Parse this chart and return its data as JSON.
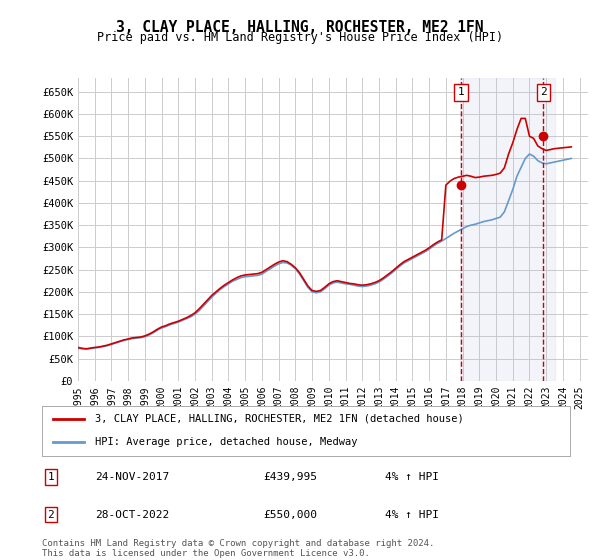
{
  "title": "3, CLAY PLACE, HALLING, ROCHESTER, ME2 1FN",
  "subtitle": "Price paid vs. HM Land Registry's House Price Index (HPI)",
  "background_color": "#ffffff",
  "plot_bg_color": "#ffffff",
  "grid_color": "#cccccc",
  "hpi_line_color": "#6699cc",
  "price_line_color": "#cc0000",
  "annotation_bg": "#dce6f5",
  "ylim": [
    0,
    680000
  ],
  "yticks": [
    0,
    50000,
    100000,
    150000,
    200000,
    250000,
    300000,
    350000,
    400000,
    450000,
    500000,
    550000,
    600000,
    650000
  ],
  "ytick_labels": [
    "£0",
    "£50K",
    "£100K",
    "£150K",
    "£200K",
    "£250K",
    "£300K",
    "£350K",
    "£400K",
    "£450K",
    "£500K",
    "£550K",
    "£600K",
    "£650K"
  ],
  "xlim_start": 1995.0,
  "xlim_end": 2025.5,
  "xtick_years": [
    1995,
    1996,
    1997,
    1998,
    1999,
    2000,
    2001,
    2002,
    2003,
    2004,
    2005,
    2006,
    2007,
    2008,
    2009,
    2010,
    2011,
    2012,
    2013,
    2014,
    2015,
    2016,
    2017,
    2018,
    2019,
    2020,
    2021,
    2022,
    2023,
    2024,
    2025
  ],
  "purchase1_x": 2017.9,
  "purchase1_y": 439995,
  "purchase1_label": "1",
  "purchase2_x": 2022.83,
  "purchase2_y": 550000,
  "purchase2_label": "2",
  "legend_label_red": "3, CLAY PLACE, HALLING, ROCHESTER, ME2 1FN (detached house)",
  "legend_label_blue": "HPI: Average price, detached house, Medway",
  "annotation1_date": "24-NOV-2017",
  "annotation1_price": "£439,995",
  "annotation1_hpi": "4% ↑ HPI",
  "annotation2_date": "28-OCT-2022",
  "annotation2_price": "£550,000",
  "annotation2_hpi": "4% ↑ HPI",
  "footer": "Contains HM Land Registry data © Crown copyright and database right 2024.\nThis data is licensed under the Open Government Licence v3.0.",
  "hpi_data_x": [
    1995.0,
    1995.25,
    1995.5,
    1995.75,
    1996.0,
    1996.25,
    1996.5,
    1996.75,
    1997.0,
    1997.25,
    1997.5,
    1997.75,
    1998.0,
    1998.25,
    1998.5,
    1998.75,
    1999.0,
    1999.25,
    1999.5,
    1999.75,
    2000.0,
    2000.25,
    2000.5,
    2000.75,
    2001.0,
    2001.25,
    2001.5,
    2001.75,
    2002.0,
    2002.25,
    2002.5,
    2002.75,
    2003.0,
    2003.25,
    2003.5,
    2003.75,
    2004.0,
    2004.25,
    2004.5,
    2004.75,
    2005.0,
    2005.25,
    2005.5,
    2005.75,
    2006.0,
    2006.25,
    2006.5,
    2006.75,
    2007.0,
    2007.25,
    2007.5,
    2007.75,
    2008.0,
    2008.25,
    2008.5,
    2008.75,
    2009.0,
    2009.25,
    2009.5,
    2009.75,
    2010.0,
    2010.25,
    2010.5,
    2010.75,
    2011.0,
    2011.25,
    2011.5,
    2011.75,
    2012.0,
    2012.25,
    2012.5,
    2012.75,
    2013.0,
    2013.25,
    2013.5,
    2013.75,
    2014.0,
    2014.25,
    2014.5,
    2014.75,
    2015.0,
    2015.25,
    2015.5,
    2015.75,
    2016.0,
    2016.25,
    2016.5,
    2016.75,
    2017.0,
    2017.25,
    2017.5,
    2017.75,
    2018.0,
    2018.25,
    2018.5,
    2018.75,
    2019.0,
    2019.25,
    2019.5,
    2019.75,
    2020.0,
    2020.25,
    2020.5,
    2020.75,
    2021.0,
    2021.25,
    2021.5,
    2021.75,
    2022.0,
    2022.25,
    2022.5,
    2022.75,
    2023.0,
    2023.25,
    2023.5,
    2023.75,
    2024.0,
    2024.25,
    2024.5
  ],
  "hpi_data_y": [
    73000,
    72000,
    71500,
    72500,
    74000,
    75000,
    77000,
    79000,
    82000,
    85000,
    88000,
    91000,
    93000,
    95000,
    96000,
    97000,
    99000,
    103000,
    108000,
    114000,
    119000,
    122000,
    126000,
    129000,
    132000,
    136000,
    140000,
    144000,
    150000,
    158000,
    168000,
    178000,
    188000,
    197000,
    205000,
    212000,
    218000,
    224000,
    228000,
    232000,
    234000,
    235000,
    236000,
    237000,
    240000,
    246000,
    252000,
    258000,
    263000,
    266000,
    265000,
    260000,
    252000,
    240000,
    225000,
    210000,
    200000,
    198000,
    200000,
    207000,
    215000,
    220000,
    222000,
    220000,
    218000,
    217000,
    215000,
    213000,
    212000,
    213000,
    215000,
    218000,
    222000,
    228000,
    235000,
    242000,
    250000,
    258000,
    265000,
    270000,
    275000,
    280000,
    285000,
    290000,
    296000,
    303000,
    309000,
    314000,
    320000,
    326000,
    332000,
    337000,
    342000,
    347000,
    350000,
    352000,
    355000,
    358000,
    360000,
    362000,
    365000,
    368000,
    380000,
    405000,
    430000,
    460000,
    480000,
    500000,
    510000,
    505000,
    495000,
    490000,
    488000,
    490000,
    492000,
    494000,
    496000,
    498000,
    500000
  ],
  "price_data_x": [
    1995.0,
    1995.25,
    1995.5,
    1995.75,
    1996.0,
    1996.25,
    1996.5,
    1996.75,
    1997.0,
    1997.25,
    1997.5,
    1997.75,
    1998.0,
    1998.25,
    1998.5,
    1998.75,
    1999.0,
    1999.25,
    1999.5,
    1999.75,
    2000.0,
    2000.25,
    2000.5,
    2000.75,
    2001.0,
    2001.25,
    2001.5,
    2001.75,
    2002.0,
    2002.25,
    2002.5,
    2002.75,
    2003.0,
    2003.25,
    2003.5,
    2003.75,
    2004.0,
    2004.25,
    2004.5,
    2004.75,
    2005.0,
    2005.25,
    2005.5,
    2005.75,
    2006.0,
    2006.25,
    2006.5,
    2006.75,
    2007.0,
    2007.25,
    2007.5,
    2007.75,
    2008.0,
    2008.25,
    2008.5,
    2008.75,
    2009.0,
    2009.25,
    2009.5,
    2009.75,
    2010.0,
    2010.25,
    2010.5,
    2010.75,
    2011.0,
    2011.25,
    2011.5,
    2011.75,
    2012.0,
    2012.25,
    2012.5,
    2012.75,
    2013.0,
    2013.25,
    2013.5,
    2013.75,
    2014.0,
    2014.25,
    2014.5,
    2014.75,
    2015.0,
    2015.25,
    2015.5,
    2015.75,
    2016.0,
    2016.25,
    2016.5,
    2016.75,
    2017.0,
    2017.25,
    2017.5,
    2017.75,
    2018.0,
    2018.25,
    2018.5,
    2018.75,
    2019.0,
    2019.25,
    2019.5,
    2019.75,
    2020.0,
    2020.25,
    2020.5,
    2020.75,
    2021.0,
    2021.25,
    2021.5,
    2021.75,
    2022.0,
    2022.25,
    2022.5,
    2022.75,
    2023.0,
    2023.25,
    2023.5,
    2023.75,
    2024.0,
    2024.25,
    2024.5
  ],
  "price_data_y": [
    75000,
    73000,
    72000,
    73500,
    75000,
    76000,
    78000,
    80000,
    83000,
    86000,
    89000,
    92000,
    94000,
    96500,
    97500,
    98500,
    101000,
    105000,
    110000,
    116000,
    121000,
    124000,
    128000,
    131000,
    134000,
    138000,
    142000,
    147000,
    153000,
    162000,
    172000,
    182000,
    192000,
    200000,
    208000,
    215000,
    221000,
    227000,
    232000,
    236000,
    238000,
    239000,
    240000,
    241000,
    244000,
    250000,
    256000,
    262000,
    267000,
    270000,
    268000,
    262000,
    254000,
    243000,
    228000,
    213000,
    203000,
    201000,
    203000,
    210000,
    218000,
    223000,
    225000,
    223000,
    221000,
    219000,
    218000,
    216000,
    215000,
    216000,
    218000,
    221000,
    225000,
    231000,
    238000,
    245000,
    253000,
    261000,
    268000,
    273000,
    278000,
    283000,
    288000,
    293000,
    299000,
    306000,
    312000,
    317000,
    439995,
    449000,
    455000,
    458000,
    460000,
    462000,
    460000,
    457000,
    458000,
    460000,
    461000,
    462000,
    464000,
    467000,
    479000,
    510000,
    535000,
    565000,
    590000,
    590000,
    550000,
    545000,
    528000,
    522000,
    518000,
    520000,
    522000,
    523000,
    524000,
    525000,
    526000
  ]
}
